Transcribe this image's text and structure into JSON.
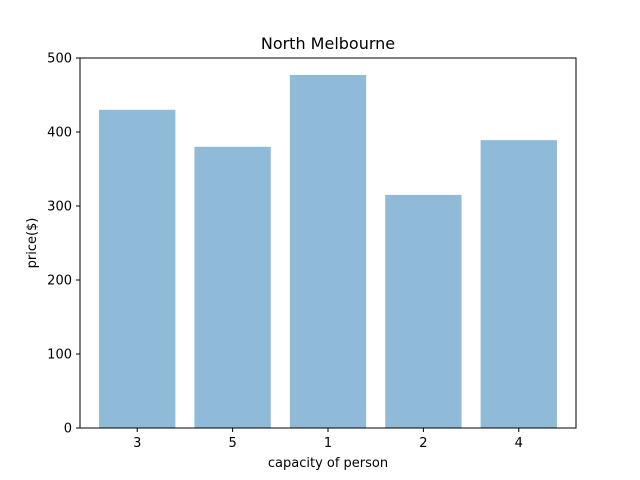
{
  "chart_data": {
    "type": "bar",
    "title": "North Melbourne",
    "xlabel": "capacity of person",
    "ylabel": "price($)",
    "categories": [
      "3",
      "5",
      "1",
      "2",
      "4"
    ],
    "values": [
      430,
      380,
      477,
      315,
      389
    ],
    "ylim": [
      0,
      500
    ],
    "yticks": [
      0,
      100,
      200,
      300,
      400,
      500
    ],
    "grid": false,
    "bar_color": "#8fbad8"
  }
}
